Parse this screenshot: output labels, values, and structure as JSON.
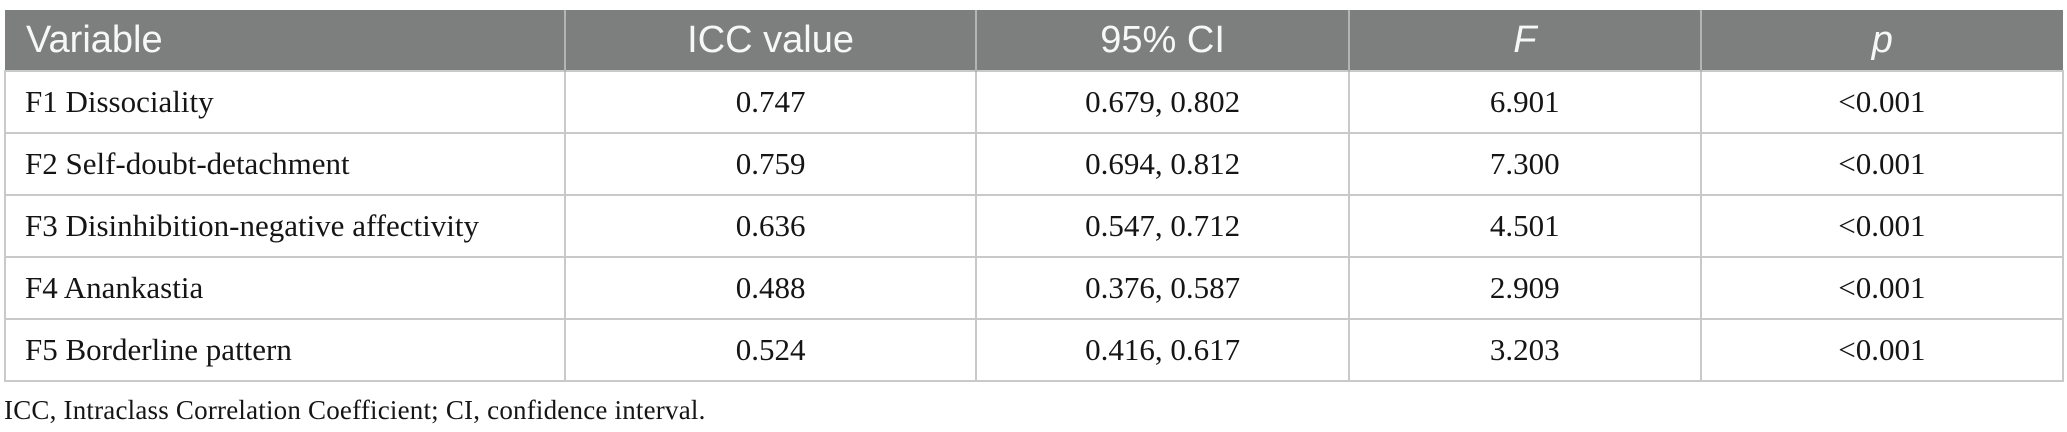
{
  "table": {
    "columns": [
      {
        "label": "Variable"
      },
      {
        "label": "ICC value"
      },
      {
        "label": "95% CI"
      },
      {
        "label": "F"
      },
      {
        "label": "p"
      }
    ],
    "rows": [
      {
        "variable": "F1 Dissociality",
        "icc_value": "0.747",
        "ci_95": "0.679, 0.802",
        "f": "6.901",
        "p": "<0.001"
      },
      {
        "variable": "F2 Self-doubt-detachment",
        "icc_value": "0.759",
        "ci_95": "0.694, 0.812",
        "f": "7.300",
        "p": "<0.001"
      },
      {
        "variable": "F3 Disinhibition-negative affectivity",
        "icc_value": "0.636",
        "ci_95": "0.547, 0.712",
        "f": "4.501",
        "p": "<0.001"
      },
      {
        "variable": "F4 Anankastia",
        "icc_value": "0.488",
        "ci_95": "0.376, 0.587",
        "f": "2.909",
        "p": "<0.001"
      },
      {
        "variable": "F5 Borderline pattern",
        "icc_value": "0.524",
        "ci_95": "0.416, 0.617",
        "f": "3.203",
        "p": "<0.001"
      }
    ],
    "footnote": "ICC, Intraclass Correlation Coefficient; CI, confidence interval."
  },
  "colors": {
    "header_bg": "#7d7f7f",
    "header_text": "#f7f7f7",
    "body_text": "#151515",
    "grid_border": "#c9c9c9",
    "header_separator": "#b3b5b5"
  }
}
